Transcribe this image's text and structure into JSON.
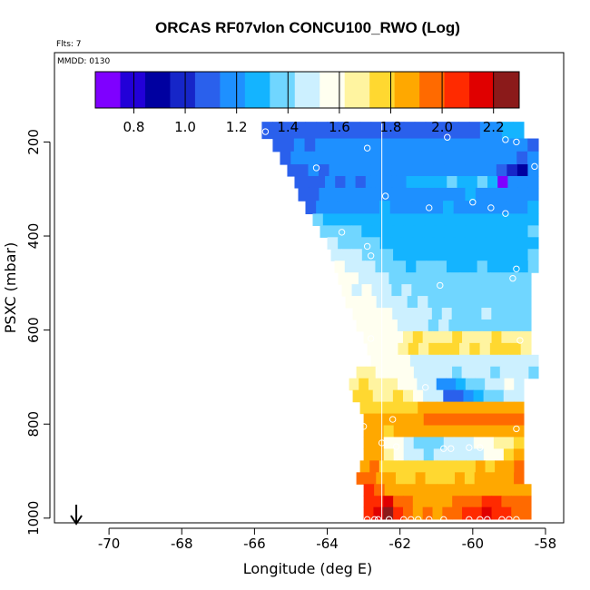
{
  "chart_data": {
    "type": "heatmap",
    "title": "ORCAS RF07vlon CONCU100_RWO (Log)",
    "flights_label": "Flts: 7",
    "date_label": "MMDD: 0130",
    "xlabel": "Longitude (deg E)",
    "ylabel": "PSXC (mbar)",
    "xlim": [
      -71.5,
      -57.5
    ],
    "ylim": [
      1010,
      10
    ],
    "x_ticks": [
      -70,
      -68,
      -66,
      -64,
      -62,
      -60,
      -58
    ],
    "x_tick_labels": [
      "-70",
      "-68",
      "-66",
      "-64",
      "-62",
      "-60",
      "-58"
    ],
    "y_ticks": [
      200,
      400,
      600,
      800,
      1000
    ],
    "y_tick_labels": [
      "200",
      "400",
      "600",
      "800",
      "1000"
    ],
    "colorbar": {
      "range": [
        0.65,
        2.3
      ],
      "ticks": [
        0.8,
        1.0,
        1.2,
        1.4,
        1.6,
        1.8,
        2.0,
        2.2
      ],
      "tick_labels": [
        "0.8",
        "1.0",
        "1.2",
        "1.4",
        "1.6",
        "1.8",
        "2.0",
        "2.2"
      ],
      "colors": [
        "#7f00ff",
        "#2200d8",
        "#0000a0",
        "#1626c8",
        "#2a60ec",
        "#1e90ff",
        "#14b4ff",
        "#70d6ff",
        "#ccf0ff",
        "#fffff0",
        "#fff4a0",
        "#ffd830",
        "#ffa800",
        "#ff6a00",
        "#ff2a00",
        "#e00000",
        "#8b1a1a"
      ]
    },
    "vertical_line_x": -62.5,
    "arrow_x": -70.9,
    "series": [
      {
        "p": 180,
        "x0": -65.8,
        "x1": -58.6,
        "values": [
          1.07,
          1.08,
          1.09,
          1.1,
          1.08,
          1.07,
          1.1,
          1.09,
          1.1,
          1.08,
          1.09,
          1.12,
          1.1,
          1.11,
          1.1,
          1.08,
          1.12,
          1.09,
          1.05,
          1.1,
          1.15,
          1.2,
          1.25,
          1.3
        ]
      },
      {
        "p": 205,
        "x0": -65.5,
        "x1": -58.2,
        "values": [
          1.1,
          1.12,
          1.15,
          1.1,
          1.18,
          1.2,
          1.15,
          1.18,
          1.2,
          1.18,
          1.22,
          1.2,
          1.22,
          1.2,
          1.18,
          1.2,
          1.22,
          1.18,
          1.2,
          1.15,
          1.22,
          1.2,
          1.18,
          1.15,
          1.1
        ]
      },
      {
        "p": 235,
        "x0": -65.3,
        "x1": -58.2,
        "values": [
          1.12,
          1.15,
          1.18,
          1.2,
          1.18,
          1.2,
          1.22,
          1.2,
          1.18,
          1.22,
          1.2,
          1.22,
          1.22,
          1.2,
          1.22,
          1.2,
          1.22,
          1.2,
          1.22,
          1.18,
          1.2,
          1.15,
          1.1,
          1.15
        ]
      },
      {
        "p": 260,
        "x0": -65.1,
        "x1": -58.2,
        "values": [
          1.1,
          1.12,
          1.15,
          1.12,
          1.15,
          1.18,
          1.15,
          1.18,
          1.2,
          1.18,
          1.2,
          1.22,
          1.2,
          1.22,
          1.2,
          1.22,
          1.2,
          1.22,
          1.2,
          1.15,
          1.1,
          1.0,
          0.85,
          1.15
        ]
      },
      {
        "p": 285,
        "x0": -64.9,
        "x1": -58.2,
        "values": [
          1.08,
          1.1,
          1.12,
          1.15,
          1.12,
          1.15,
          1.12,
          1.15,
          1.18,
          1.2,
          1.22,
          1.25,
          1.28,
          1.32,
          1.3,
          1.35,
          1.32,
          1.3,
          1.35,
          1.28,
          0.72,
          1.2,
          1.15,
          1.2
        ]
      },
      {
        "p": 310,
        "x0": -64.8,
        "x1": -58.2,
        "values": [
          1.1,
          1.12,
          1.14,
          1.16,
          1.18,
          1.2,
          1.2,
          1.22,
          1.2,
          1.22,
          1.2,
          1.22,
          1.2,
          1.22,
          1.2,
          1.22,
          1.24,
          1.22,
          1.2,
          1.22,
          1.2,
          1.22,
          1.2
        ]
      },
      {
        "p": 340,
        "x0": -64.6,
        "x1": -58.2,
        "values": [
          1.12,
          1.15,
          1.18,
          1.2,
          1.22,
          1.2,
          1.22,
          1.24,
          1.22,
          1.2,
          1.22,
          1.2,
          1.22,
          1.24,
          1.22,
          1.2,
          1.22,
          1.2,
          1.22,
          1.2,
          1.22,
          1.24
        ]
      },
      {
        "p": 365,
        "x0": -64.4,
        "x1": -58.2,
        "values": [
          1.35,
          1.32,
          1.3,
          1.28,
          1.32,
          1.28,
          1.25,
          1.28,
          1.3,
          1.28,
          1.32,
          1.3,
          1.28,
          1.3,
          1.32,
          1.3,
          1.28,
          1.3,
          1.32,
          1.3,
          1.28,
          1.3
        ]
      },
      {
        "p": 390,
        "x0": -64.2,
        "x1": -58.2,
        "values": [
          1.4,
          1.42,
          1.38,
          1.35,
          1.32,
          1.3,
          1.32,
          1.3,
          1.28,
          1.3,
          1.32,
          1.3,
          1.32,
          1.3,
          1.28,
          1.3,
          1.32,
          1.3,
          1.32,
          1.3,
          1.35
        ]
      },
      {
        "p": 415,
        "x0": -64.0,
        "x1": -58.2,
        "values": [
          1.45,
          1.42,
          1.4,
          1.38,
          1.36,
          1.3,
          1.28,
          1.3,
          1.28,
          1.3,
          1.32,
          1.3,
          1.3,
          1.32,
          1.3,
          1.32,
          1.3,
          1.32,
          1.3,
          1.28
        ]
      },
      {
        "p": 440,
        "x0": -63.9,
        "x1": -58.2,
        "values": [
          1.5,
          1.48,
          1.45,
          1.42,
          1.38,
          1.35,
          1.3,
          1.3,
          1.32,
          1.32,
          1.3,
          1.32,
          1.3,
          1.32,
          1.3,
          1.32,
          1.3,
          1.32,
          1.3,
          1.35
        ]
      },
      {
        "p": 465,
        "x0": -63.8,
        "x1": -58.2,
        "values": [
          1.55,
          1.52,
          1.5,
          1.45,
          1.42,
          1.38,
          1.35,
          1.32,
          1.35,
          1.38,
          1.35,
          1.32,
          1.3,
          1.32,
          1.35,
          1.32,
          1.3,
          1.32,
          1.3,
          1.35
        ]
      },
      {
        "p": 490,
        "x0": -63.7,
        "x1": -58.4,
        "values": [
          1.58,
          1.55,
          1.52,
          1.5,
          1.45,
          1.42,
          1.4,
          1.38,
          1.4,
          1.42,
          1.4,
          1.38,
          1.4,
          1.38,
          1.4,
          1.38,
          1.4,
          1.38,
          1.4
        ]
      },
      {
        "p": 515,
        "x0": -63.6,
        "x1": -58.4,
        "values": [
          1.55,
          1.52,
          1.55,
          1.5,
          1.48,
          1.42,
          1.45,
          1.42,
          1.4,
          1.38,
          1.4,
          1.38,
          1.4,
          1.38,
          1.4,
          1.38,
          1.4,
          1.42,
          1.4
        ]
      },
      {
        "p": 540,
        "x0": -63.5,
        "x1": -58.4,
        "values": [
          1.58,
          1.6,
          1.55,
          1.52,
          1.5,
          1.45,
          1.42,
          1.45,
          1.42,
          1.4,
          1.38,
          1.4,
          1.42,
          1.4,
          1.38,
          1.4,
          1.42,
          1.4
        ]
      },
      {
        "p": 565,
        "x0": -63.3,
        "x1": -58.4,
        "values": [
          1.6,
          1.62,
          1.58,
          1.55,
          1.52,
          1.5,
          1.48,
          1.45,
          1.42,
          1.44,
          1.42,
          1.4,
          1.42,
          1.44,
          1.42,
          1.4,
          1.42,
          1.4
        ]
      },
      {
        "p": 590,
        "x0": -63.2,
        "x1": -58.4,
        "values": [
          1.62,
          1.6,
          1.58,
          1.55,
          1.5,
          1.48,
          1.45,
          1.42,
          1.44,
          1.42,
          1.4,
          1.42,
          1.4,
          1.42,
          1.4,
          1.42,
          1.4
        ]
      },
      {
        "p": 615,
        "x0": -63.0,
        "x1": -58.4,
        "values": [
          1.62,
          1.6,
          1.58,
          1.55,
          1.7,
          1.72,
          1.7,
          1.68,
          1.7,
          1.72,
          1.7,
          1.68,
          1.7,
          1.72,
          1.7,
          1.68,
          1.7
        ]
      },
      {
        "p": 640,
        "x0": -62.9,
        "x1": -58.4,
        "values": [
          1.6,
          1.58,
          1.55,
          1.68,
          1.72,
          1.7,
          1.72,
          1.74,
          1.72,
          1.7,
          1.72,
          1.7,
          1.72,
          1.74,
          1.72,
          1.7
        ]
      },
      {
        "p": 665,
        "x0": -62.8,
        "x1": -58.2,
        "values": [
          1.62,
          1.6,
          1.58,
          1.62,
          1.5,
          1.48,
          1.45,
          1.48,
          1.5,
          1.45,
          1.48,
          1.45,
          1.48,
          1.5,
          1.48,
          1.45,
          1.48
        ]
      },
      {
        "p": 690,
        "x0": -63.2,
        "x1": -58.2,
        "values": [
          1.65,
          1.68,
          1.62,
          1.6,
          1.58,
          1.55,
          1.5,
          1.45,
          1.48,
          1.45,
          1.42,
          1.45,
          1.48,
          1.45,
          1.42,
          1.45,
          1.48,
          1.45,
          1.42
        ]
      },
      {
        "p": 715,
        "x0": -63.4,
        "x1": -58.6,
        "values": [
          1.7,
          1.72,
          1.68,
          1.65,
          1.7,
          1.62,
          1.55,
          1.5,
          1.48,
          1.2,
          1.15,
          1.3,
          1.35,
          1.4,
          1.45,
          1.5,
          1.55,
          1.52
        ]
      },
      {
        "p": 740,
        "x0": -63.3,
        "x1": -58.6,
        "values": [
          1.72,
          1.75,
          1.7,
          1.68,
          1.72,
          1.68,
          1.55,
          1.48,
          1.45,
          1.05,
          1.1,
          1.2,
          1.3,
          1.35,
          1.4,
          1.45,
          1.5
        ]
      },
      {
        "p": 765,
        "x0": -63.1,
        "x1": -58.6,
        "values": [
          1.78,
          1.75,
          1.72,
          1.75,
          1.78,
          1.8,
          1.82,
          1.85,
          1.88,
          1.85,
          1.88,
          1.9,
          1.88,
          1.9,
          1.88,
          1.85,
          1.88
        ]
      },
      {
        "p": 790,
        "x0": -63.0,
        "x1": -58.6,
        "values": [
          1.82,
          1.85,
          1.82,
          1.85,
          1.88,
          1.9,
          1.92,
          1.95,
          1.92,
          1.95,
          1.92,
          1.95,
          1.98,
          1.95,
          1.92,
          1.95
        ]
      },
      {
        "p": 815,
        "x0": -63.0,
        "x1": -58.6,
        "values": [
          1.85,
          1.82,
          1.8,
          1.82,
          1.85,
          1.88,
          1.82,
          1.85,
          1.88,
          1.85,
          1.82,
          1.85,
          1.88,
          1.9,
          1.85,
          1.88
        ]
      },
      {
        "p": 840,
        "x0": -63.0,
        "x1": -58.6,
        "values": [
          1.88,
          1.85,
          1.6,
          1.55,
          1.45,
          1.4,
          1.38,
          1.42,
          1.45,
          1.48,
          1.5,
          1.55,
          1.6,
          1.65,
          1.7,
          1.8
        ]
      },
      {
        "p": 865,
        "x0": -63.0,
        "x1": -58.6,
        "values": [
          1.9,
          1.88,
          1.65,
          1.58,
          1.5,
          1.45,
          1.42,
          1.45,
          1.48,
          1.5,
          1.45,
          1.5,
          1.55,
          1.62,
          1.72,
          1.85
        ]
      },
      {
        "p": 890,
        "x0": -63.1,
        "x1": -58.6,
        "values": [
          1.9,
          1.92,
          1.78,
          1.72,
          1.75,
          1.78,
          1.8,
          1.75,
          1.78,
          1.8,
          1.78,
          1.8,
          1.82,
          1.8,
          1.85,
          1.9,
          1.92
        ]
      },
      {
        "p": 915,
        "x0": -63.2,
        "x1": -58.6,
        "values": [
          1.95,
          1.92,
          1.85,
          1.82,
          1.78,
          1.8,
          1.82,
          1.8,
          1.78,
          1.8,
          1.82,
          1.8,
          1.82,
          1.85,
          1.88,
          1.9,
          1.92
        ]
      },
      {
        "p": 940,
        "x0": -63.0,
        "x1": -58.4,
        "values": [
          2.02,
          1.95,
          1.9,
          1.88,
          1.85,
          1.82,
          1.85,
          1.88,
          1.85,
          1.82,
          1.85,
          1.88,
          1.9,
          1.88,
          1.85,
          1.88
        ]
      },
      {
        "p": 965,
        "x0": -63.0,
        "x1": -58.4,
        "values": [
          2.08,
          2.05,
          2.2,
          2.0,
          1.92,
          1.88,
          1.9,
          1.88,
          1.9,
          1.92,
          1.95,
          2.0,
          2.05,
          2.02,
          2.0,
          1.95,
          1.92
        ]
      },
      {
        "p": 988,
        "x0": -63.0,
        "x1": -58.4,
        "values": [
          2.1,
          2.12,
          2.25,
          2.05,
          1.95,
          1.9,
          1.92,
          1.9,
          1.95,
          2.0,
          2.05,
          2.1,
          2.12,
          2.08,
          2.02,
          1.98,
          1.95
        ]
      }
    ],
    "sample_points": [
      [
        -65.7,
        178
      ],
      [
        -62.9,
        213
      ],
      [
        -60.7,
        190
      ],
      [
        -59.1,
        195
      ],
      [
        -58.8,
        200
      ],
      [
        -64.3,
        255
      ],
      [
        -58.3,
        252
      ],
      [
        -62.4,
        315
      ],
      [
        -61.2,
        340
      ],
      [
        -60.0,
        328
      ],
      [
        -59.5,
        340
      ],
      [
        -59.1,
        352
      ],
      [
        -63.6,
        392
      ],
      [
        -62.9,
        422
      ],
      [
        -62.8,
        442
      ],
      [
        -60.9,
        505
      ],
      [
        -58.9,
        490
      ],
      [
        -58.8,
        470
      ],
      [
        -63.3,
        588
      ],
      [
        -62.8,
        618
      ],
      [
        -58.7,
        622
      ],
      [
        -61.3,
        722
      ],
      [
        -63.0,
        805
      ],
      [
        -62.2,
        790
      ],
      [
        -58.8,
        810
      ],
      [
        -62.5,
        840
      ],
      [
        -62.1,
        848
      ],
      [
        -60.8,
        852
      ],
      [
        -60.6,
        852
      ],
      [
        -60.1,
        850
      ],
      [
        -59.8,
        850
      ],
      [
        -62.9,
        1003
      ],
      [
        -62.7,
        1003
      ],
      [
        -62.6,
        1003
      ],
      [
        -62.3,
        1003
      ],
      [
        -61.9,
        1003
      ],
      [
        -61.7,
        1003
      ],
      [
        -61.5,
        1003
      ],
      [
        -61.2,
        1003
      ],
      [
        -60.8,
        1003
      ],
      [
        -60.1,
        1003
      ],
      [
        -59.8,
        1003
      ],
      [
        -59.6,
        1003
      ],
      [
        -59.2,
        1003
      ],
      [
        -59.0,
        1003
      ],
      [
        -58.8,
        1003
      ]
    ]
  }
}
